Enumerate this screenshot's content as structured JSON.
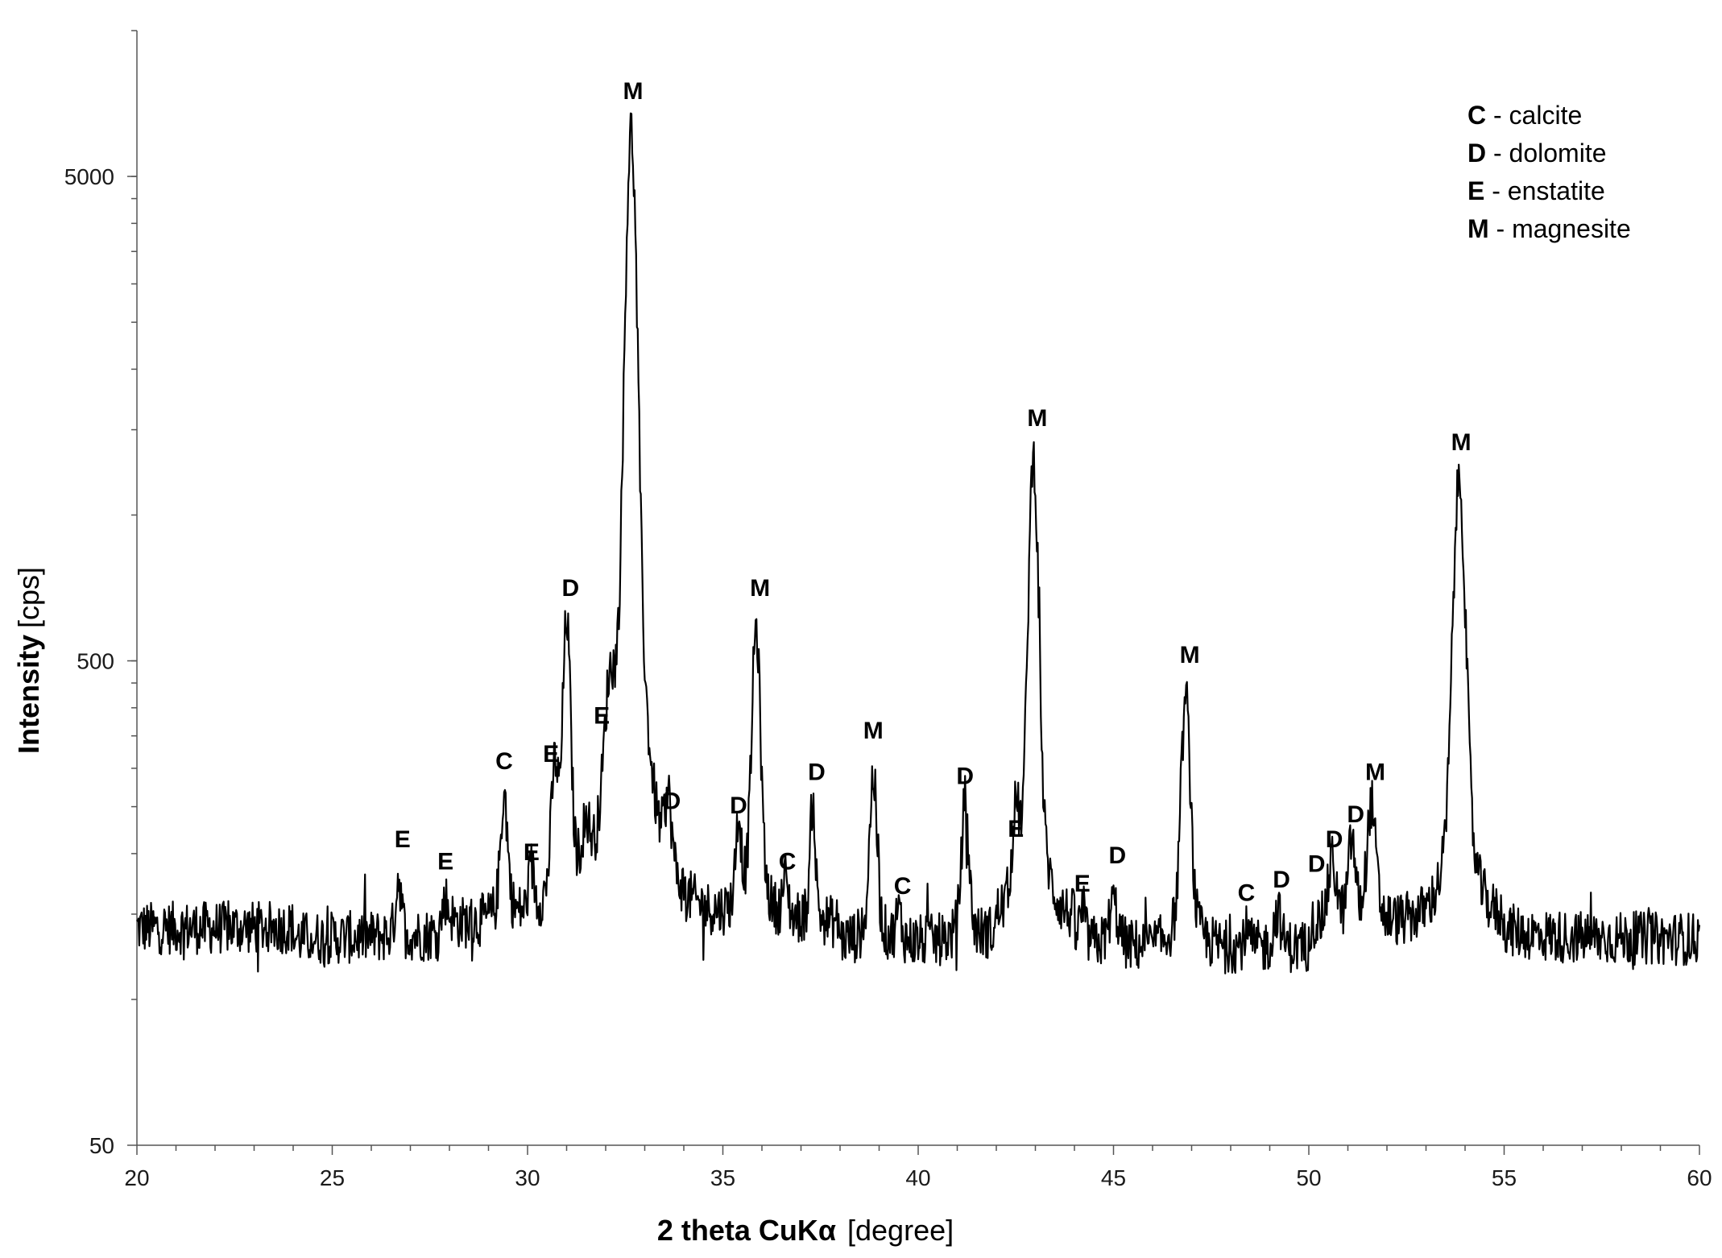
{
  "chart_data": {
    "type": "line",
    "title": "",
    "xlabel_main": "2 theta CuKα",
    "xlabel_unit": "[degree]",
    "ylabel_main": "Intensity",
    "ylabel_unit": "[cps]",
    "xlim": [
      20,
      60
    ],
    "ylim": [
      50,
      10000
    ],
    "yscale": "log",
    "grid": false,
    "legend_position": "top-right",
    "x_ticks": [
      "20",
      "25",
      "30",
      "35",
      "40",
      "45",
      "50",
      "55",
      "60"
    ],
    "y_ticks": [
      "50",
      "500",
      "5000"
    ],
    "baseline": 140,
    "peaks": [
      {
        "x": 26.7,
        "y": 185,
        "w": 0.08
      },
      {
        "x": 27.9,
        "y": 165,
        "w": 0.1
      },
      {
        "x": 29.4,
        "y": 260,
        "w": 0.1
      },
      {
        "x": 30.1,
        "y": 175,
        "w": 0.08
      },
      {
        "x": 30.7,
        "y": 280,
        "w": 0.1
      },
      {
        "x": 31.0,
        "y": 590,
        "w": 0.1
      },
      {
        "x": 31.5,
        "y": 190,
        "w": 0.12
      },
      {
        "x": 32.1,
        "y": 330,
        "w": 0.15
      },
      {
        "x": 32.65,
        "y": 6200,
        "w": 0.13
      },
      {
        "x": 33.6,
        "y": 215,
        "w": 0.1
      },
      {
        "x": 35.4,
        "y": 225,
        "w": 0.08
      },
      {
        "x": 35.85,
        "y": 580,
        "w": 0.11
      },
      {
        "x": 36.6,
        "y": 170,
        "w": 0.08
      },
      {
        "x": 37.3,
        "y": 255,
        "w": 0.07
      },
      {
        "x": 38.85,
        "y": 300,
        "w": 0.1
      },
      {
        "x": 39.5,
        "y": 160,
        "w": 0.08
      },
      {
        "x": 41.2,
        "y": 265,
        "w": 0.1
      },
      {
        "x": 42.5,
        "y": 220,
        "w": 0.1
      },
      {
        "x": 42.95,
        "y": 1320,
        "w": 0.12
      },
      {
        "x": 44.2,
        "y": 160,
        "w": 0.08
      },
      {
        "x": 45.0,
        "y": 170,
        "w": 0.12
      },
      {
        "x": 46.85,
        "y": 430,
        "w": 0.12
      },
      {
        "x": 48.4,
        "y": 150,
        "w": 0.08
      },
      {
        "x": 49.2,
        "y": 165,
        "w": 0.1
      },
      {
        "x": 50.6,
        "y": 190,
        "w": 0.12
      },
      {
        "x": 51.1,
        "y": 210,
        "w": 0.1
      },
      {
        "x": 51.6,
        "y": 250,
        "w": 0.12
      },
      {
        "x": 53.85,
        "y": 1180,
        "w": 0.15
      }
    ],
    "annotations": [
      {
        "label": "E",
        "x": 26.8,
        "y": 200
      },
      {
        "label": "E",
        "x": 27.9,
        "y": 180
      },
      {
        "label": "C",
        "x": 29.4,
        "y": 290
      },
      {
        "label": "E",
        "x": 30.1,
        "y": 188
      },
      {
        "label": "E",
        "x": 30.6,
        "y": 300
      },
      {
        "label": "D",
        "x": 31.1,
        "y": 660
      },
      {
        "label": "E",
        "x": 31.9,
        "y": 360
      },
      {
        "label": "M",
        "x": 32.7,
        "y": 7000
      },
      {
        "label": "D",
        "x": 33.7,
        "y": 240
      },
      {
        "label": "D",
        "x": 35.4,
        "y": 235
      },
      {
        "label": "M",
        "x": 35.95,
        "y": 660
      },
      {
        "label": "C",
        "x": 36.65,
        "y": 180
      },
      {
        "label": "D",
        "x": 37.4,
        "y": 275
      },
      {
        "label": "M",
        "x": 38.85,
        "y": 335
      },
      {
        "label": "C",
        "x": 39.6,
        "y": 160
      },
      {
        "label": "D",
        "x": 41.2,
        "y": 270
      },
      {
        "label": "E",
        "x": 42.5,
        "y": 210
      },
      {
        "label": "M",
        "x": 43.05,
        "y": 1480
      },
      {
        "label": "E",
        "x": 44.2,
        "y": 162
      },
      {
        "label": "D",
        "x": 45.1,
        "y": 185
      },
      {
        "label": "M",
        "x": 46.95,
        "y": 480
      },
      {
        "label": "C",
        "x": 48.4,
        "y": 155
      },
      {
        "label": "D",
        "x": 49.3,
        "y": 165
      },
      {
        "label": "D",
        "x": 50.2,
        "y": 178
      },
      {
        "label": "D",
        "x": 50.65,
        "y": 200
      },
      {
        "label": "D",
        "x": 51.2,
        "y": 225
      },
      {
        "label": "M",
        "x": 51.7,
        "y": 275
      },
      {
        "label": "M",
        "x": 53.9,
        "y": 1320
      }
    ],
    "legend": [
      {
        "key": "C",
        "text": " - calcite"
      },
      {
        "key": "D",
        "text": " - dolomite"
      },
      {
        "key": "E",
        "text": " - enstatite"
      },
      {
        "key": "M",
        "text": " - magnesite"
      }
    ]
  }
}
